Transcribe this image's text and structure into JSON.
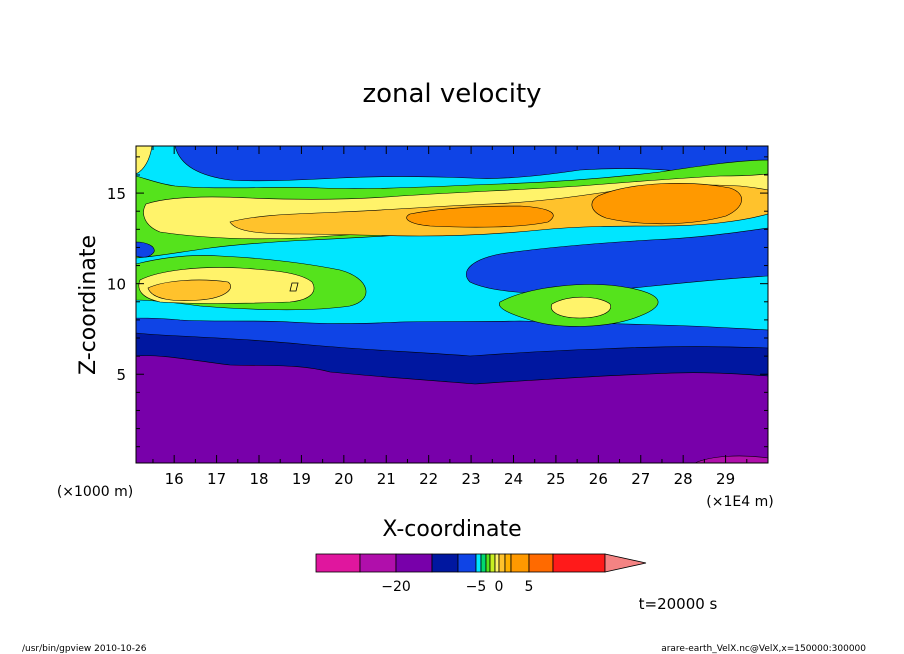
{
  "chart_data": {
    "type": "heatmap",
    "title": "zonal velocity",
    "xlabel": "X-coordinate",
    "ylabel": "Z-coordinate",
    "x_unit": "(×1E4 m)",
    "y_unit": "(×1000 m)",
    "xlim": [
      15.1,
      30.0
    ],
    "ylim": [
      0.1,
      17.6
    ],
    "x_ticks": [
      16,
      17,
      18,
      19,
      20,
      21,
      22,
      23,
      24,
      25,
      26,
      27,
      28,
      29
    ],
    "y_ticks": [
      5,
      10,
      15
    ],
    "time_label": "t=20000 s",
    "colorbar": {
      "tick_labels": [
        {
          "value": -20,
          "label": "−20"
        },
        {
          "value": -5,
          "label": "−5"
        },
        {
          "value": 0,
          "label": "0"
        },
        {
          "value": 5,
          "label": "5"
        }
      ],
      "levels": [
        {
          "from": -30,
          "to": -25,
          "color": "#e0169e"
        },
        {
          "from": -25,
          "to": -20,
          "color": "#b00fab"
        },
        {
          "from": -20,
          "to": -15,
          "color": "#7800aa"
        },
        {
          "from": -15,
          "to": -10,
          "color": "#0017a0"
        },
        {
          "from": -10,
          "to": -5,
          "color": "#0f44e6"
        },
        {
          "from": -5,
          "to": -4,
          "color": "#00e6ff"
        },
        {
          "from": -4,
          "to": -3,
          "color": "#00d96e"
        },
        {
          "from": -3,
          "to": -2,
          "color": "#55e31c"
        },
        {
          "from": -2,
          "to": -1,
          "color": "#c7ef21"
        },
        {
          "from": -1,
          "to": 0,
          "color": "#fff36a"
        },
        {
          "from": 0,
          "to": 1,
          "color": "#ffc22c"
        },
        {
          "from": 1,
          "to": 2,
          "color": "#ffb000"
        },
        {
          "from": 2,
          "to": 5,
          "color": "#ff9900"
        },
        {
          "from": 5,
          "to": 10,
          "color": "#ff6a00"
        },
        {
          "from": 10,
          "to": 15,
          "color": "#ff1a1a"
        },
        {
          "from": 15,
          "to": 20,
          "color": "#f48383"
        }
      ]
    },
    "regions": [
      {
        "level": "purple",
        "color": "#7800aa",
        "approx_z_range": [
          0.1,
          6.1
        ],
        "approx_u": -17
      },
      {
        "level": "navy",
        "color": "#0017a0",
        "approx_z_range": [
          4.8,
          7.4
        ],
        "approx_u": -12
      },
      {
        "level": "blue",
        "color": "#0f44e6",
        "approx_z_range": [
          6.2,
          8.3
        ],
        "approx_u": -7
      },
      {
        "level": "cyan",
        "color": "#00e6ff",
        "approx_z_range": [
          7.8,
          16.5
        ],
        "approx_u": -4.5
      },
      {
        "level": "green",
        "color": "#55e31c",
        "approx_z_range": [
          9.5,
          16.3
        ],
        "approx_u": -2
      },
      {
        "level": "yellow",
        "color": "#fff36a",
        "approx_z_range": [
          8.8,
          15.8
        ],
        "approx_u": -0.5
      },
      {
        "level": "gold",
        "color": "#ffc22c",
        "approx_z_range": [
          12.5,
          15.9
        ],
        "approx_u": 0.5
      },
      {
        "level": "orange",
        "color": "#ff9900",
        "approx_z_range": [
          13.3,
          15.7
        ],
        "approx_u": 3
      }
    ]
  },
  "footer": {
    "left": "/usr/bin/gpview   2010-10-26",
    "right": "arare-earth_VelX.nc@VelX,x=150000:300000"
  }
}
